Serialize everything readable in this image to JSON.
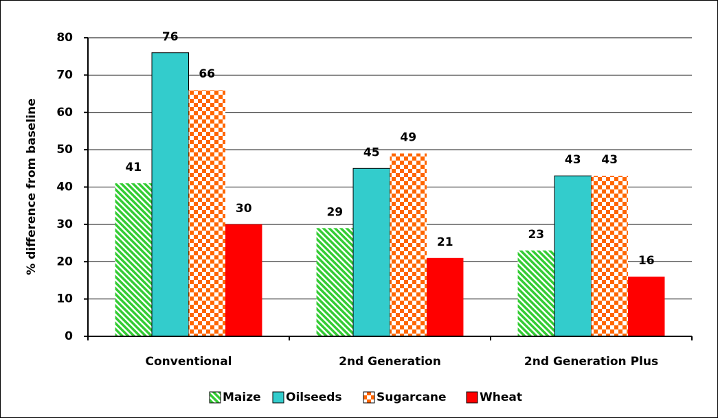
{
  "chart_data": {
    "type": "bar",
    "y_label": "% difference from baseline",
    "categories": [
      "Conventional",
      "2nd Generation",
      "2nd Generation Plus"
    ],
    "series": [
      {
        "name": "Maize",
        "color": "#33cc33",
        "pattern": "diagonal",
        "values": [
          41,
          29,
          23
        ]
      },
      {
        "name": "Oilseeds",
        "color": "#33cccc",
        "pattern": "solid",
        "values": [
          76,
          45,
          43
        ]
      },
      {
        "name": "Sugarcane",
        "color": "#ff6600",
        "pattern": "checker",
        "values": [
          66,
          49,
          43
        ]
      },
      {
        "name": "Wheat",
        "color": "#ff0000",
        "pattern": "solid",
        "values": [
          30,
          21,
          16
        ]
      }
    ],
    "ylim": [
      0,
      80
    ],
    "yticks": [
      0,
      10,
      20,
      30,
      40,
      50,
      60,
      70,
      80
    ],
    "grid": true,
    "legend": "bottom"
  }
}
